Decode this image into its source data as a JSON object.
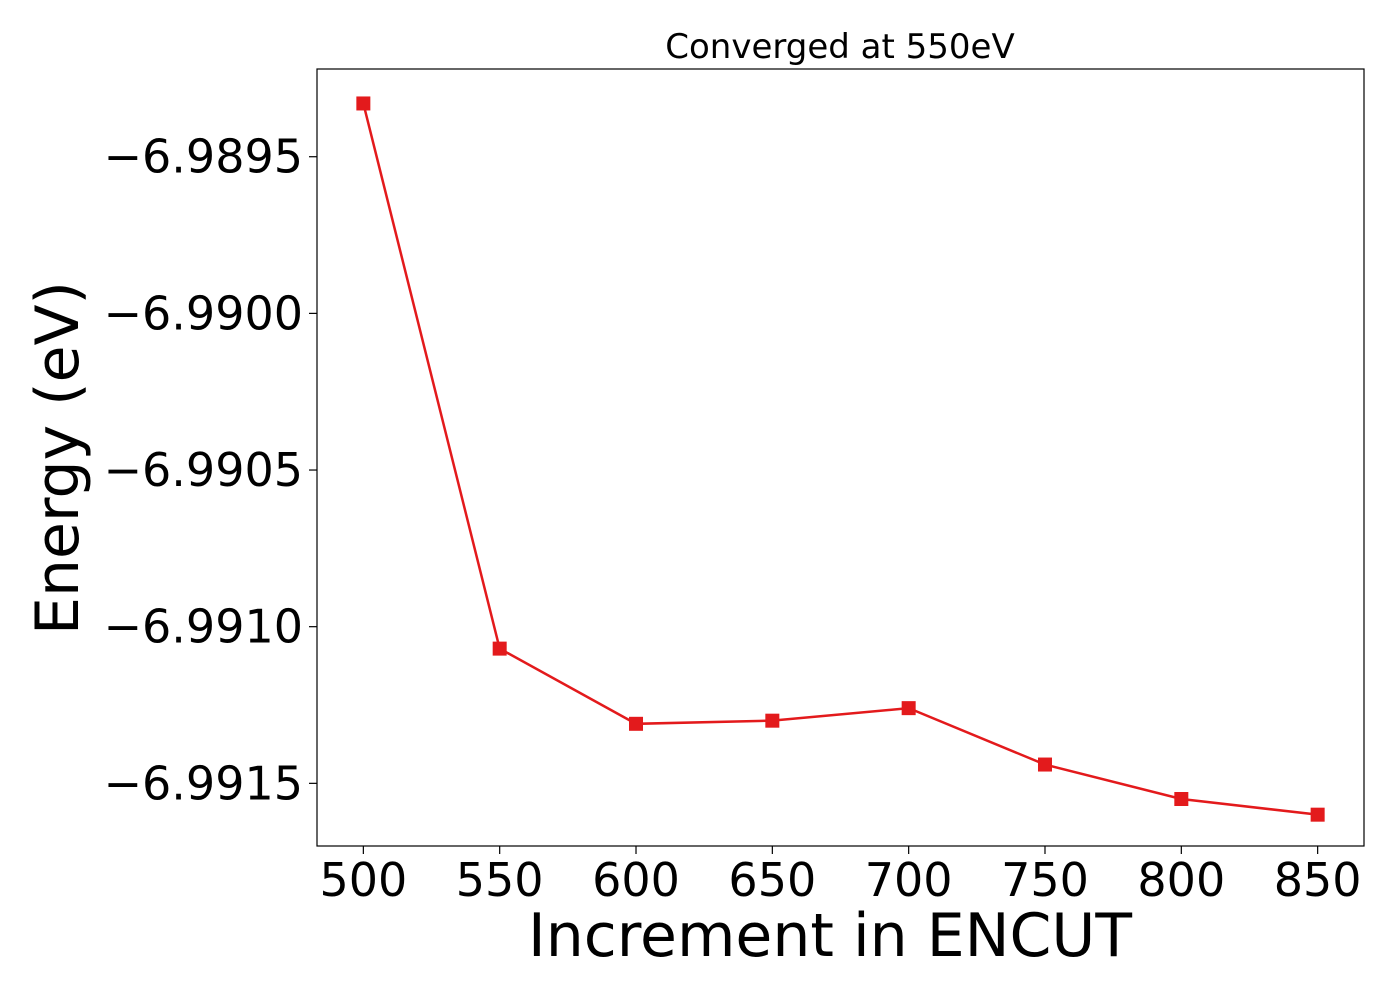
{
  "chart_data": {
    "type": "line",
    "title": "Converged at 550eV",
    "xlabel": "Increment in ENCUT",
    "ylabel": "Energy (eV)",
    "xlim": [
      483,
      867
    ],
    "ylim": [
      -6.9917,
      -6.98922
    ],
    "x_ticks": [
      500,
      550,
      600,
      650,
      700,
      750,
      800,
      850
    ],
    "y_ticks": [
      -6.9895,
      -6.99,
      -6.9905,
      -6.991,
      -6.9915
    ],
    "x_tick_labels": [
      "500",
      "550",
      "600",
      "650",
      "700",
      "750",
      "800",
      "850"
    ],
    "y_tick_labels": [
      "−6.9895",
      "−6.9900",
      "−6.9905",
      "−6.9910",
      "−6.9915"
    ],
    "grid": false,
    "series": [
      {
        "color": "#e31a1c",
        "marker": "square",
        "x": [
          500,
          550,
          600,
          650,
          700,
          750,
          800,
          850
        ],
        "y": [
          -6.98933,
          -6.99107,
          -6.99131,
          -6.9913,
          -6.99126,
          -6.99144,
          -6.99155,
          -6.9916
        ]
      }
    ]
  }
}
